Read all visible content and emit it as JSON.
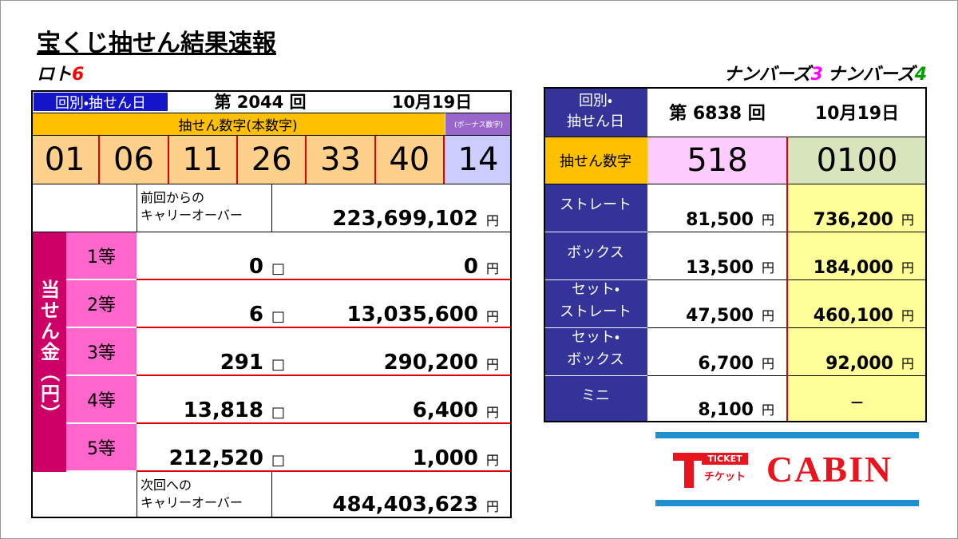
{
  "header": {
    "title": "宝くじ抽せん結果速報",
    "loto6_label": "ロト",
    "loto6_num": "6",
    "numbers3_label": "ナンバーズ",
    "numbers3_num": "3",
    "numbers4_label": "ナンバーズ",
    "numbers4_num": "4"
  },
  "loto6": {
    "round_label": "回別・抽せん日",
    "round": "第 2044 回",
    "date": "10月19日",
    "main_label": "抽せん数字(本数字)",
    "bonus_label": "(ボーナス数字)",
    "numbers": [
      "01",
      "06",
      "11",
      "26",
      "33",
      "40"
    ],
    "bonus": "14",
    "carryover_prev_label": [
      "前回からの",
      "キャリーオーバー"
    ],
    "carryover_prev": [
      "223,699,102",
      "円"
    ],
    "prize_label": "当せん金（円）",
    "prizes": [
      {
        "grade": "1等",
        "winners": [
          "0",
          "□"
        ],
        "amount": [
          "0",
          "円"
        ]
      },
      {
        "grade": "2等",
        "winners": [
          "6",
          "□"
        ],
        "amount": [
          "13,035,600",
          "円"
        ]
      },
      {
        "grade": "3等",
        "winners": [
          "291",
          "□"
        ],
        "amount": [
          "290,200",
          "円"
        ]
      },
      {
        "grade": "4等",
        "winners": [
          "13,818",
          "□"
        ],
        "amount": [
          "6,400",
          "円"
        ]
      },
      {
        "grade": "5等",
        "winners": [
          "212,520",
          "□"
        ],
        "amount": [
          "1,000",
          "円"
        ]
      }
    ],
    "carryover_next_label": [
      "次回への",
      "キャリーオーバー"
    ],
    "carryover_next": [
      "484,403,623",
      "円"
    ]
  },
  "numbers": {
    "round_label": [
      "回別・",
      "抽せん日"
    ],
    "round": "第 6838 回",
    "date": "10月19日",
    "draw_label": "抽せん数字",
    "n3": "518",
    "n4": "0100",
    "rows": [
      {
        "label": [
          "ストレート"
        ],
        "n3": [
          "81,500",
          "円"
        ],
        "n4": [
          "736,200",
          "円"
        ]
      },
      {
        "label": [
          "ボックス"
        ],
        "n3": [
          "13,500",
          "円"
        ],
        "n4": [
          "184,000",
          "円"
        ]
      },
      {
        "label": [
          "セット・",
          "ストレート"
        ],
        "n3": [
          "47,500",
          "円"
        ],
        "n4": [
          "460,100",
          "円"
        ]
      },
      {
        "label": [
          "セット・",
          "ボックス"
        ],
        "n3": [
          "6,700",
          "円"
        ],
        "n4": [
          "92,000",
          "円"
        ]
      },
      {
        "label": [
          "ミニ"
        ],
        "n3": [
          "8,100",
          "円"
        ],
        "n4": [
          "－"
        ]
      }
    ]
  },
  "logo": {
    "small_en": "TICKET",
    "small_jp": "チケット",
    "name": "CABIN"
  }
}
